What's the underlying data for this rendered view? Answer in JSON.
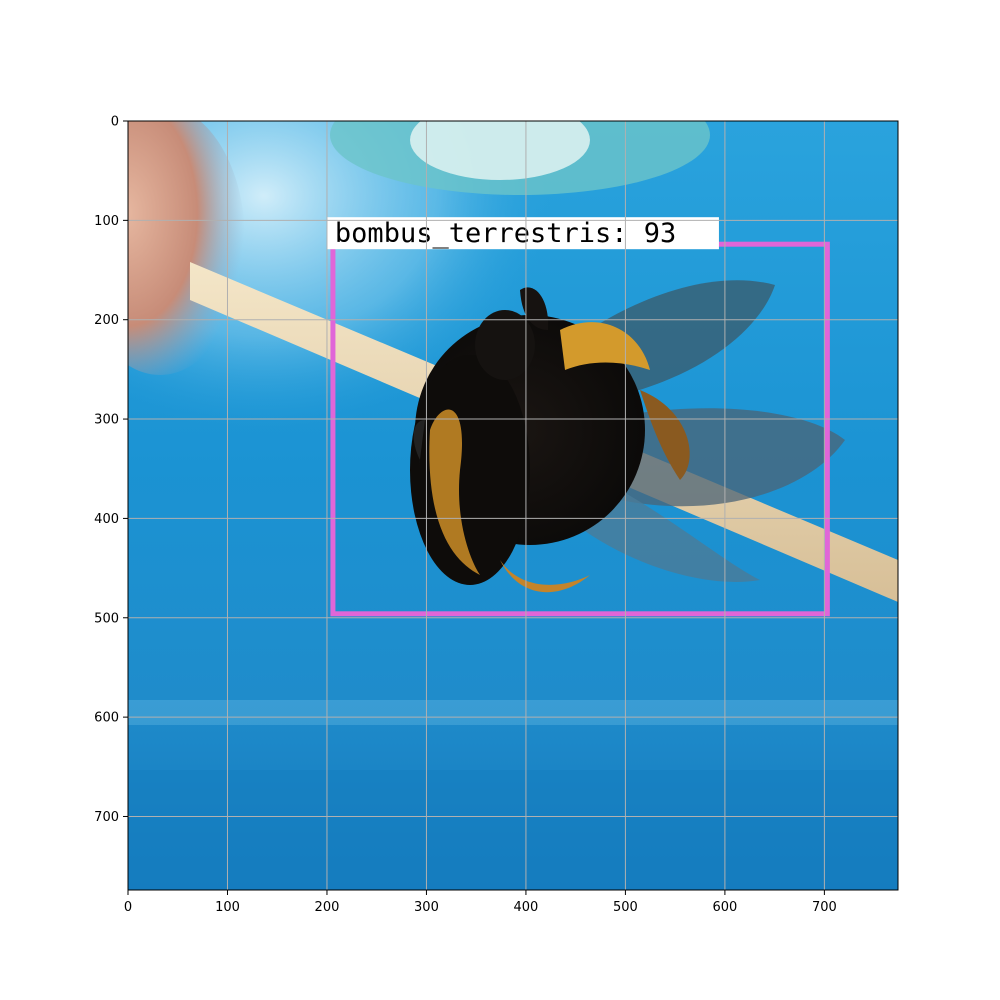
{
  "image": {
    "width": 774,
    "height": 774,
    "scene": "bumblebee"
  },
  "axes": {
    "x_ticks": [
      "0",
      "100",
      "200",
      "300",
      "400",
      "500",
      "600",
      "700"
    ],
    "y_ticks": [
      "0",
      "100",
      "200",
      "300",
      "400",
      "500",
      "600",
      "700"
    ],
    "grid": true
  },
  "detection": {
    "label": "bombus_terrestris: 93",
    "box": {
      "x1": 206,
      "y1": 124,
      "x2": 703,
      "y2": 496
    },
    "box_color": "#e066d8"
  },
  "colors": {
    "background_blue": "#1a8fd0",
    "grid": "#b0b0b0"
  }
}
